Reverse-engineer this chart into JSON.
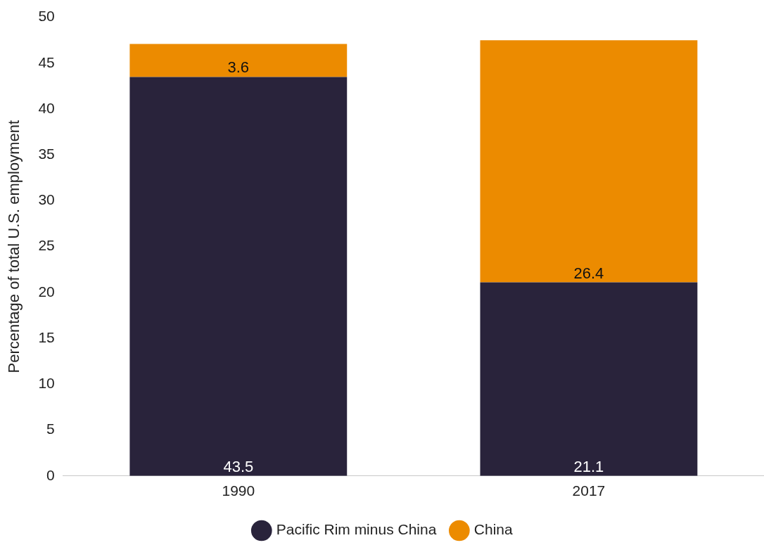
{
  "chart_data": {
    "type": "bar",
    "stacked": true,
    "ylabel": "Percentage of total U.S. employment",
    "categories": [
      "1990",
      "2017"
    ],
    "series": [
      {
        "name": "Pacific Rim minus China",
        "color": "#29233b",
        "values": [
          43.5,
          21.1
        ]
      },
      {
        "name": "China",
        "color": "#ec8b00",
        "values": [
          3.6,
          26.4
        ]
      }
    ],
    "ylim": [
      0,
      50
    ],
    "yticks": [
      0,
      5,
      10,
      15,
      20,
      25,
      30,
      35,
      40,
      45,
      50
    ],
    "grid": false,
    "legend": "bottom",
    "data_labels": true
  }
}
